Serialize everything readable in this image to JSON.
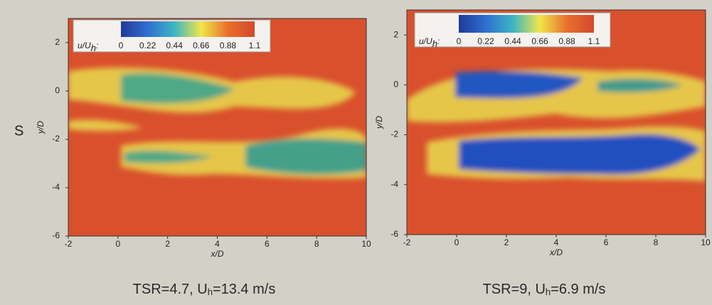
{
  "side_label": "S",
  "chart_data": [
    {
      "type": "contour",
      "xlabel": "x/D",
      "ylabel": "y/D",
      "xlim": [
        -2,
        10
      ],
      "ylim": [
        -6,
        3
      ],
      "xticks": [
        -2,
        0,
        2,
        4,
        6,
        8,
        10
      ],
      "yticks": [
        -6,
        -4,
        -2,
        0,
        2
      ],
      "colorbar": {
        "label": [
          "u/U",
          "h",
          ":"
        ],
        "clim": [
          0,
          1.1
        ],
        "ticks": [
          0,
          0.22,
          0.44,
          0.66,
          0.88,
          1.1
        ],
        "colors": [
          "#1f3a9a",
          "#2f6fd0",
          "#3db5c4",
          "#f0e64a",
          "#e8702c",
          "#d4482c"
        ]
      },
      "caption": [
        "TSR=4.7, U",
        "h",
        "=13.4 m/s"
      ]
    },
    {
      "type": "contour",
      "xlabel": "x/D",
      "ylabel": "y/D",
      "xlim": [
        -2,
        10
      ],
      "ylim": [
        -6,
        3
      ],
      "xticks": [
        -2,
        0,
        2,
        4,
        6,
        8,
        10
      ],
      "yticks": [
        -6,
        -4,
        -2,
        0,
        2
      ],
      "colorbar": {
        "label": [
          "u/U",
          "h",
          ":"
        ],
        "clim": [
          0,
          1.1
        ],
        "ticks": [
          0,
          0.22,
          0.44,
          0.66,
          0.88,
          1.1
        ],
        "colors": [
          "#1f3a9a",
          "#2f6fd0",
          "#3db5c4",
          "#f0e64a",
          "#e8702c",
          "#d4482c"
        ]
      },
      "caption": [
        "TSR=9, U",
        "h",
        "=6.9 m/s"
      ]
    }
  ]
}
